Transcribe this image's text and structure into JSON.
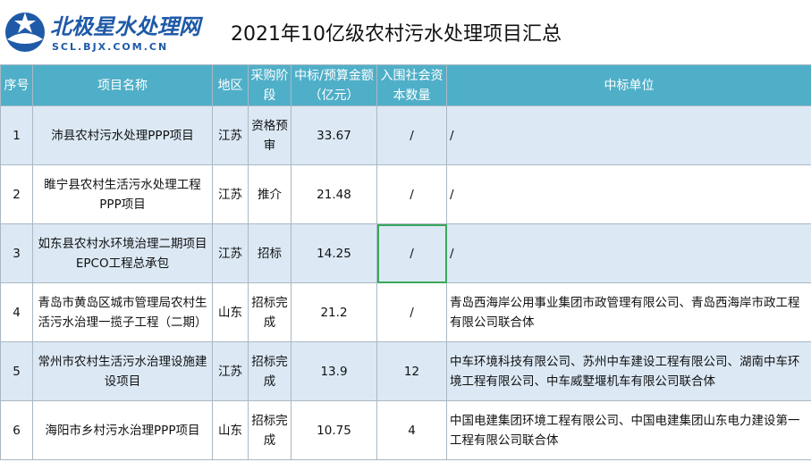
{
  "header": {
    "logo_name": "北极星水处理网",
    "logo_url": "SCL.BJX.COM.CN",
    "title": "2021年10亿级农村污水处理项目汇总"
  },
  "table": {
    "headers": [
      "序号",
      "项目名称",
      "地区",
      "采购阶段",
      "中标/预算金额（亿元）",
      "入围社会资本数量",
      "中标单位"
    ],
    "rows": [
      [
        "1",
        "沛县农村污水处理PPP项目",
        "江苏",
        "资格预审",
        "33.67",
        "/",
        "/"
      ],
      [
        "2",
        "睢宁县农村生活污水处理工程PPP项目",
        "江苏",
        "推介",
        "21.48",
        "/",
        "/"
      ],
      [
        "3",
        "如东县农村水环境治理二期项目EPCO工程总承包",
        "江苏",
        "招标",
        "14.25",
        "/",
        "/"
      ],
      [
        "4",
        "青岛市黄岛区城市管理局农村生活污水治理一揽子工程（二期）",
        "山东",
        "招标完成",
        "21.2",
        "/",
        "青岛西海岸公用事业集团市政管理有限公司、青岛西海岸市政工程有限公司联合体"
      ],
      [
        "5",
        "常州市农村生活污水治理设施建设项目",
        "江苏",
        "招标完成",
        "13.9",
        "12",
        "中车环境科技有限公司、苏州中车建设工程有限公司、湖南中车环境工程有限公司、中车威墅堰机车有限公司联合体"
      ],
      [
        "6",
        "海阳市乡村污水治理PPP项目",
        "山东",
        "招标完成",
        "10.75",
        "4",
        "中国电建集团环境工程有限公司、中国电建集团山东电力建设第一工程有限公司联合体"
      ]
    ]
  }
}
